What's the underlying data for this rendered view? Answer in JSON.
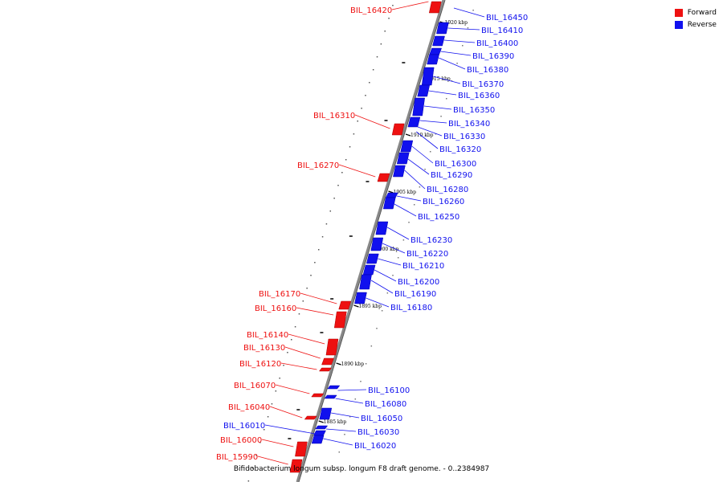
{
  "legend": {
    "forward_label": "Forward",
    "reverse_label": "Reverse",
    "forward_color": "#ee1111",
    "reverse_color": "#1111ee"
  },
  "caption": "Bifidobacterium longum subsp. longum F8 draft genome. - 0..2384987",
  "ticks": [
    "1920 kbp",
    "1915 kbp",
    "1910 kbp",
    "1905 kbp",
    "1900 kbp",
    "1895 kbp",
    "1890 kbp",
    "1885 kbp"
  ],
  "genes_forward": [
    "BIL_16420",
    "BIL_16310",
    "BIL_16270",
    "BIL_16170",
    "BIL_16160",
    "BIL_16140",
    "BIL_16130",
    "BIL_16120",
    "BIL_16070",
    "BIL_16040",
    "BIL_16000",
    "BIL_15990"
  ],
  "genes_reverse": [
    "BIL_16450",
    "BIL_16410",
    "BIL_16400",
    "BIL_16390",
    "BIL_16380",
    "BIL_16370",
    "BIL_16360",
    "BIL_16350",
    "BIL_16340",
    "BIL_16330",
    "BIL_16320",
    "BIL_16300",
    "BIL_16290",
    "BIL_16280",
    "BIL_16260",
    "BIL_16250",
    "BIL_16230",
    "BIL_16220",
    "BIL_16210",
    "BIL_16200",
    "BIL_16190",
    "BIL_16180",
    "BIL_16100",
    "BIL_16080",
    "BIL_16050",
    "BIL_16030",
    "BIL_16010",
    "BIL_16020"
  ]
}
